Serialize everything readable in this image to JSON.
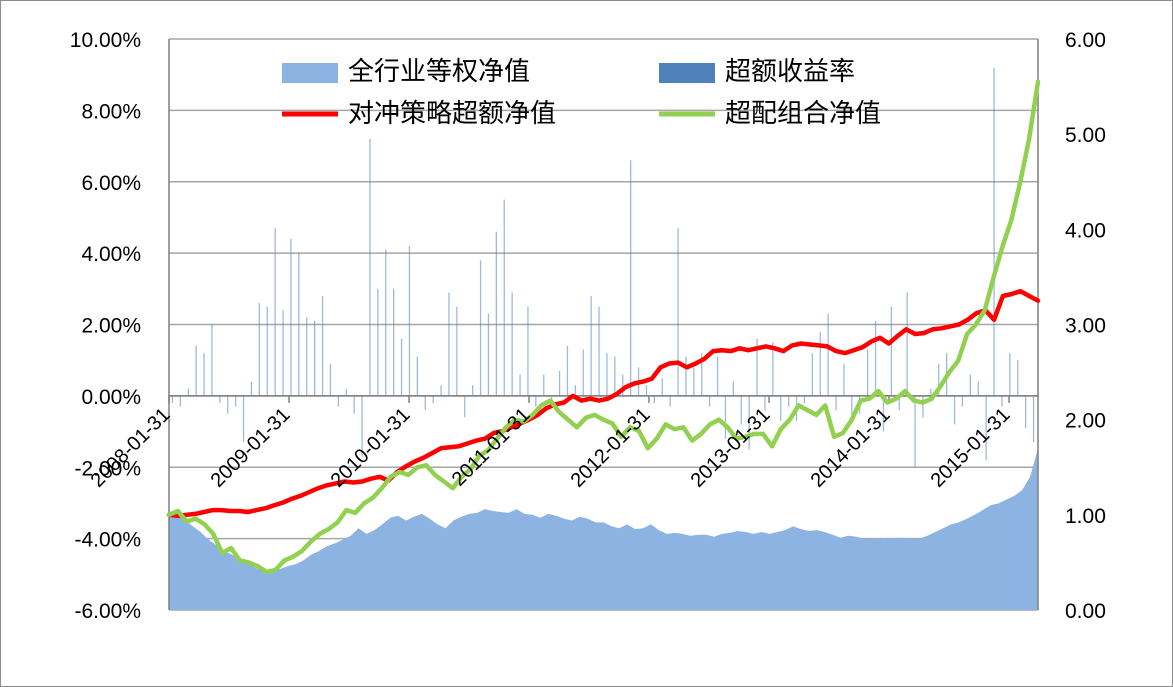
{
  "chart_data": {
    "type": "combo",
    "title": "",
    "legend": {
      "placement": "top",
      "entries": [
        {
          "key": "area",
          "label": "全行业等权净值"
        },
        {
          "key": "bars",
          "label": "超额收益率"
        },
        {
          "key": "red",
          "label": "对冲策略超额净值"
        },
        {
          "key": "green",
          "label": "超配组合净值"
        }
      ]
    },
    "colors": {
      "area": "#8db3e2",
      "bars": "#4f81bd",
      "red": "#ff0000",
      "green": "#92d050",
      "grid": "#a6a6a6",
      "axis": "#7f7f7f"
    },
    "y_left": {
      "min": -6,
      "max": 10,
      "step": 2,
      "ticks": [
        "-6.00%",
        "-4.00%",
        "-2.00%",
        "0.00%",
        "2.00%",
        "4.00%",
        "6.00%",
        "8.00%",
        "10.00%"
      ]
    },
    "y_right": {
      "min": 0,
      "max": 6,
      "step": 1,
      "ticks": [
        "0.00",
        "1.00",
        "2.00",
        "3.00",
        "4.00",
        "5.00",
        "6.00"
      ]
    },
    "x_labels": [
      "2008-01-31",
      "2009-01-31",
      "2010-01-31",
      "2011-01-31",
      "2012-01-31",
      "2013-01-31",
      "2014-01-31",
      "2015-01-31"
    ],
    "grid": true,
    "series": [
      {
        "name": "超额收益率",
        "axis": "left",
        "type": "bar",
        "values": [
          -0.2,
          -0.3,
          0.2,
          1.4,
          1.2,
          2.0,
          -0.2,
          -0.5,
          -0.3,
          -1.3,
          0.4,
          2.6,
          2.5,
          4.7,
          2.4,
          4.4,
          4.0,
          2.2,
          2.1,
          2.8,
          0.9,
          -0.3,
          0.2,
          -0.5,
          -1.7,
          7.2,
          3.0,
          4.1,
          3.0,
          1.6,
          4.2,
          1.1,
          -0.4,
          -0.2,
          0.3,
          2.9,
          2.5,
          -0.6,
          0.3,
          3.8,
          2.3,
          4.6,
          5.5,
          2.9,
          0.6,
          2.5,
          -0.3,
          0.6,
          -0.2,
          0.7,
          1.4,
          0.3,
          1.3,
          2.8,
          2.5,
          1.2,
          1.1,
          0.6,
          6.6,
          0.8,
          0.3,
          -0.2,
          0.5,
          -0.3,
          4.7,
          1.1,
          0.8,
          1.2,
          -0.3,
          1.1,
          -1.2,
          0.4,
          -0.8,
          -1.5,
          1.6,
          -0.4,
          1.5,
          -0.7,
          -0.3,
          -0.7,
          -0.2,
          1.2,
          1.8,
          2.3,
          -0.4,
          0.9,
          -0.6,
          -0.5,
          1.3,
          2.1,
          -1.0,
          2.5,
          -0.4,
          2.9,
          -2.0,
          -0.6,
          0.2,
          0.9,
          1.2,
          -0.8,
          -0.3,
          0.6,
          0.4,
          -1.8,
          9.2,
          -0.3,
          1.2,
          1.0,
          -0.9,
          -1.3
        ]
      },
      {
        "name": "全行业等权净值",
        "axis": "right",
        "type": "area",
        "values": [
          1.0,
          0.99,
          0.95,
          0.88,
          0.82,
          0.74,
          0.68,
          0.62,
          0.58,
          0.53,
          0.49,
          0.44,
          0.41,
          0.4,
          0.43,
          0.46,
          0.48,
          0.52,
          0.58,
          0.62,
          0.67,
          0.7,
          0.74,
          0.78,
          0.86,
          0.8,
          0.84,
          0.9,
          0.97,
          0.99,
          0.94,
          0.98,
          1.01,
          0.96,
          0.9,
          0.86,
          0.94,
          0.98,
          1.01,
          1.02,
          1.06,
          1.04,
          1.03,
          1.02,
          1.06,
          1.01,
          1.0,
          0.97,
          1.01,
          0.99,
          0.96,
          0.94,
          0.98,
          0.96,
          0.92,
          0.92,
          0.88,
          0.86,
          0.9,
          0.85,
          0.86,
          0.9,
          0.84,
          0.8,
          0.81,
          0.8,
          0.78,
          0.79,
          0.79,
          0.77,
          0.8,
          0.81,
          0.83,
          0.82,
          0.8,
          0.82,
          0.8,
          0.82,
          0.84,
          0.88,
          0.85,
          0.83,
          0.84,
          0.82,
          0.79,
          0.76,
          0.78,
          0.77,
          0.75,
          0.75,
          0.76,
          0.75,
          0.76,
          0.76,
          0.75,
          0.75,
          0.78,
          0.82,
          0.86,
          0.9,
          0.92,
          0.96,
          1.0,
          1.05,
          1.1,
          1.12,
          1.16,
          1.2,
          1.26,
          1.4,
          1.7
        ]
      },
      {
        "name": "对冲策略超额净值",
        "axis": "right",
        "type": "line",
        "values": [
          1.0,
          0.99,
          1.0,
          1.01,
          1.03,
          1.05,
          1.05,
          1.04,
          1.04,
          1.03,
          1.05,
          1.07,
          1.1,
          1.13,
          1.17,
          1.2,
          1.24,
          1.28,
          1.31,
          1.33,
          1.35,
          1.34,
          1.35,
          1.38,
          1.4,
          1.36,
          1.45,
          1.51,
          1.56,
          1.6,
          1.65,
          1.7,
          1.71,
          1.72,
          1.75,
          1.78,
          1.8,
          1.86,
          1.88,
          1.92,
          1.96,
          2.0,
          2.05,
          2.12,
          2.16,
          2.18,
          2.25,
          2.2,
          2.22,
          2.2,
          2.22,
          2.27,
          2.34,
          2.38,
          2.4,
          2.43,
          2.55,
          2.59,
          2.6,
          2.55,
          2.59,
          2.64,
          2.72,
          2.73,
          2.72,
          2.75,
          2.73,
          2.75,
          2.77,
          2.75,
          2.72,
          2.78,
          2.8,
          2.79,
          2.78,
          2.77,
          2.72,
          2.7,
          2.73,
          2.76,
          2.82,
          2.86,
          2.8,
          2.88,
          2.95,
          2.9,
          2.91,
          2.95,
          2.96,
          2.98,
          3.0,
          3.05,
          3.12,
          3.15,
          3.05,
          3.3,
          3.32,
          3.35,
          3.3,
          3.25
        ]
      },
      {
        "name": "超配组合净值",
        "axis": "right",
        "type": "line",
        "values": [
          1.0,
          1.04,
          0.93,
          0.96,
          0.9,
          0.8,
          0.6,
          0.65,
          0.52,
          0.5,
          0.46,
          0.4,
          0.42,
          0.52,
          0.56,
          0.62,
          0.72,
          0.8,
          0.85,
          0.92,
          1.05,
          1.02,
          1.12,
          1.18,
          1.28,
          1.4,
          1.45,
          1.42,
          1.5,
          1.52,
          1.42,
          1.35,
          1.28,
          1.4,
          1.48,
          1.62,
          1.68,
          1.8,
          1.92,
          2.0,
          1.98,
          2.05,
          2.15,
          2.2,
          2.08,
          2.0,
          1.92,
          2.02,
          2.05,
          2.0,
          1.96,
          1.82,
          1.92,
          1.88,
          1.7,
          1.8,
          1.95,
          1.9,
          1.92,
          1.78,
          1.85,
          1.95,
          2.0,
          1.92,
          1.8,
          1.82,
          1.85,
          1.85,
          1.72,
          1.9,
          2.0,
          2.15,
          2.1,
          2.05,
          2.15,
          1.82,
          1.86,
          2.0,
          2.2,
          2.22,
          2.3,
          2.18,
          2.22,
          2.3,
          2.2,
          2.18,
          2.22,
          2.35,
          2.5,
          2.62,
          2.9,
          3.0,
          3.15,
          3.5,
          3.82,
          4.1,
          4.5,
          4.95,
          5.55
        ]
      }
    ]
  }
}
